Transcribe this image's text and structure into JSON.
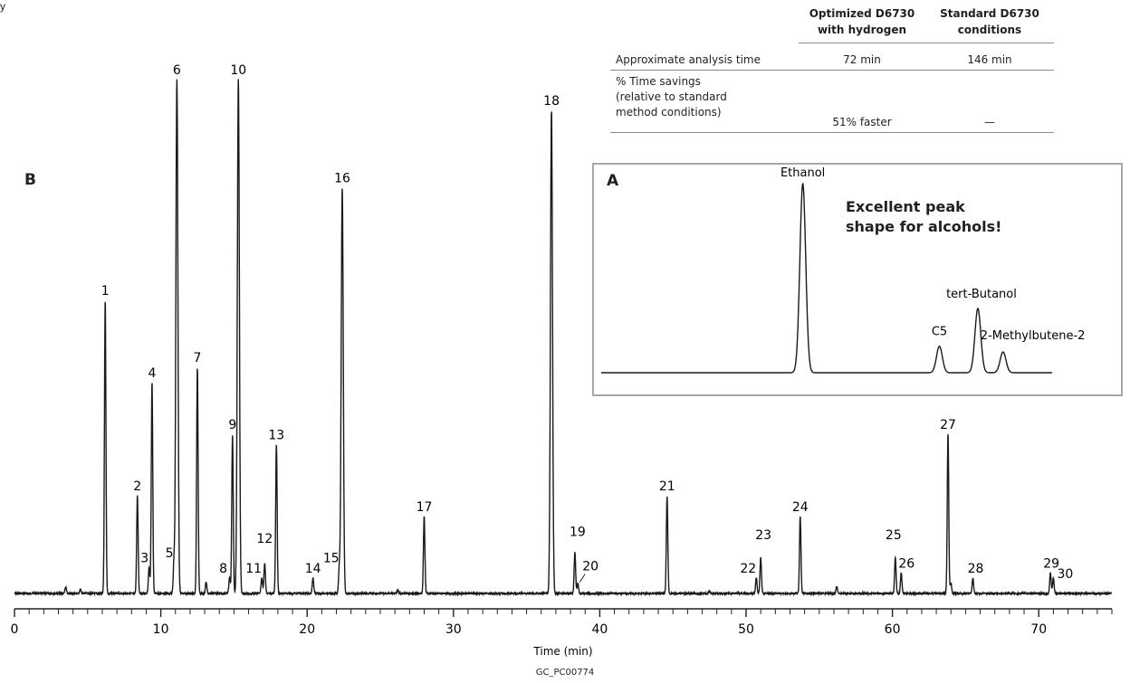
{
  "header": {
    "fragment": "y"
  },
  "panel_b": {
    "tag": "B"
  },
  "comparison_table": {
    "columns": [
      "Optimized D6730\nwith hydrogen",
      "Standard D6730\nconditions"
    ],
    "rows": [
      {
        "label": "Approximate analysis time",
        "values": [
          "72 min",
          "146 min"
        ]
      },
      {
        "label": "% Time savings\n(relative to standard\nmethod conditions)",
        "values": [
          "51% faster",
          "—"
        ]
      }
    ]
  },
  "inset": {
    "tag": "A",
    "note_line1": "Excellent peak",
    "note_line2": "shape for alcohols!"
  },
  "footer": {
    "code": "GC_PC00774"
  },
  "colors": {
    "trace": "#1a1a1a",
    "inset_border": "#a8a8a8",
    "rule": "#8c8c8c"
  },
  "chart_data": [
    {
      "type": "line",
      "panel": "B",
      "xlabel": "Time (min)",
      "ylabel": "",
      "xlim": [
        0,
        75
      ],
      "ylim": [
        0,
        100
      ],
      "x_ticks": [
        0,
        10,
        20,
        30,
        40,
        50,
        60,
        70
      ],
      "grid": false,
      "peaks": [
        {
          "label": "1",
          "x": 6.2,
          "y": 57
        },
        {
          "label": "2",
          "x": 8.4,
          "y": 19
        },
        {
          "label": "3",
          "x": 9.2,
          "y": 5
        },
        {
          "label": "4",
          "x": 9.4,
          "y": 41
        },
        {
          "label": "5",
          "x": 10.9,
          "y": 6
        },
        {
          "label": "6",
          "x": 11.1,
          "y": 100
        },
        {
          "label": "7",
          "x": 12.5,
          "y": 44
        },
        {
          "label": "8",
          "x": 14.7,
          "y": 3
        },
        {
          "label": "9",
          "x": 14.9,
          "y": 31
        },
        {
          "label": "10",
          "x": 15.3,
          "y": 100
        },
        {
          "label": "11",
          "x": 16.9,
          "y": 3
        },
        {
          "label": "12",
          "x": 17.1,
          "y": 6
        },
        {
          "label": "13",
          "x": 17.9,
          "y": 29
        },
        {
          "label": "14",
          "x": 20.4,
          "y": 3
        },
        {
          "label": "15",
          "x": 22.2,
          "y": 5
        },
        {
          "label": "16",
          "x": 22.4,
          "y": 79
        },
        {
          "label": "17",
          "x": 28.0,
          "y": 15
        },
        {
          "label": "18",
          "x": 36.7,
          "y": 94
        },
        {
          "label": "19",
          "x": 38.3,
          "y": 8
        },
        {
          "label": "20",
          "x": 38.5,
          "y": 2
        },
        {
          "label": "21",
          "x": 44.6,
          "y": 19
        },
        {
          "label": "22",
          "x": 50.7,
          "y": 3
        },
        {
          "label": "23",
          "x": 51.0,
          "y": 7
        },
        {
          "label": "24",
          "x": 53.7,
          "y": 15
        },
        {
          "label": "25",
          "x": 60.2,
          "y": 7
        },
        {
          "label": "26",
          "x": 60.6,
          "y": 4
        },
        {
          "label": "27",
          "x": 63.8,
          "y": 31
        },
        {
          "label": "28",
          "x": 65.5,
          "y": 3
        },
        {
          "label": "29",
          "x": 70.8,
          "y": 4
        },
        {
          "label": "30",
          "x": 71.0,
          "y": 3
        }
      ]
    },
    {
      "type": "line",
      "panel": "A",
      "xlabel": "",
      "ylabel": "",
      "grid": false,
      "peaks": [
        {
          "label": "Ethanol",
          "x": 53.2,
          "y": 100
        },
        {
          "label": "C5",
          "x": 63.5,
          "y": 14
        },
        {
          "label": "tert-Butanol",
          "x": 66.4,
          "y": 34
        },
        {
          "label": "2-Methylbutene-2",
          "x": 68.3,
          "y": 11
        }
      ]
    }
  ]
}
